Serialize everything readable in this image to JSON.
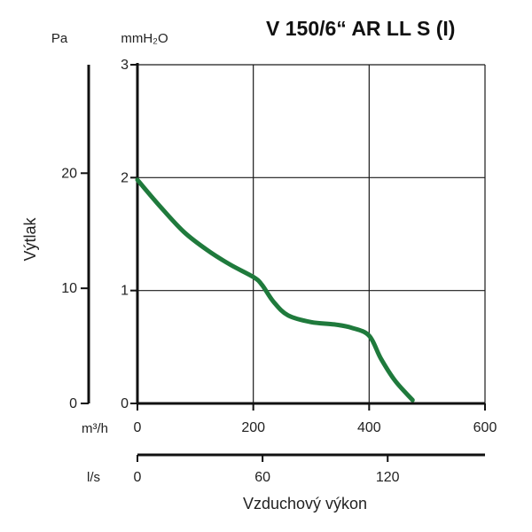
{
  "chart_data": {
    "type": "line",
    "title": "V 150/6“ AR LL S (I)",
    "xlabel": "Vzduchový výkon",
    "ylabel": "Výtlak",
    "colors": {
      "curve": "#1f7a3c",
      "grid": "#1a1a1a",
      "text": "#222222"
    },
    "grid": true,
    "x_unit": "m³/h",
    "y_unit": "mmH₂O",
    "xlim": [
      0,
      600
    ],
    "ylim": [
      0,
      3
    ],
    "x_ticks": [
      0,
      200,
      400,
      600
    ],
    "y_ticks": [
      0,
      1,
      2,
      3
    ],
    "secondary_x": {
      "unit": "l/s",
      "ticks": [
        0,
        60,
        120
      ],
      "factor": 3.6
    },
    "secondary_y": {
      "unit": "Pa",
      "ticks": [
        0,
        10,
        20
      ],
      "factor": 9.80665
    },
    "series": [
      {
        "x": [
          0,
          40,
          80,
          120,
          160,
          200,
          215,
          235,
          260,
          300,
          340,
          370,
          400,
          420,
          445,
          475
        ],
        "y": [
          1.98,
          1.74,
          1.52,
          1.36,
          1.23,
          1.12,
          1.05,
          0.9,
          0.78,
          0.72,
          0.7,
          0.67,
          0.6,
          0.4,
          0.2,
          0.03
        ]
      }
    ]
  }
}
